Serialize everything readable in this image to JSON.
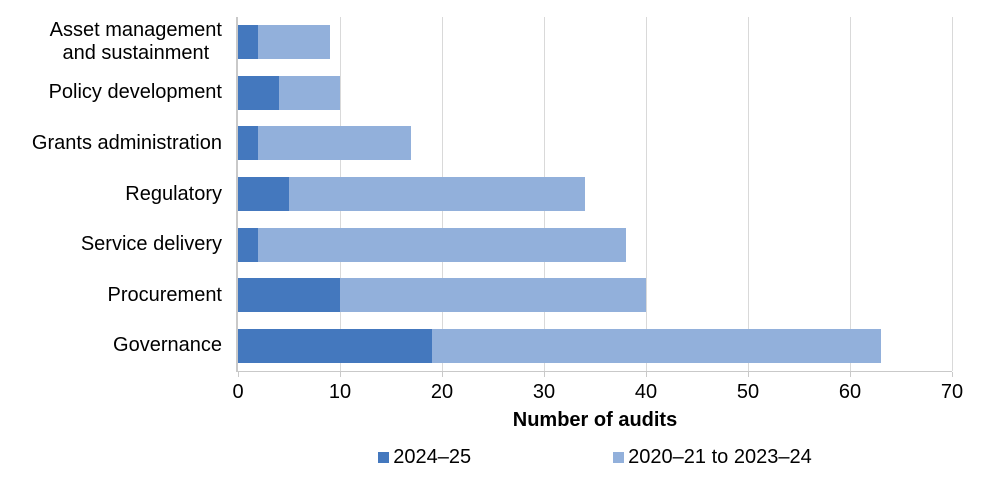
{
  "chart_data": {
    "type": "bar",
    "orientation": "horizontal",
    "stacked": true,
    "title": "",
    "xlabel": "Number of audits",
    "ylabel": "",
    "xlim": [
      0,
      70
    ],
    "xticks": [
      0,
      10,
      20,
      30,
      40,
      50,
      60,
      70
    ],
    "grid": true,
    "legend_position": "bottom",
    "categories": [
      "Asset management\nand sustainment",
      "Policy development",
      "Grants administration",
      "Regulatory",
      "Service delivery",
      "Procurement",
      "Governance"
    ],
    "series": [
      {
        "name": "2024–25",
        "color": "#4478be",
        "values": [
          2,
          4,
          2,
          5,
          2,
          10,
          19
        ]
      },
      {
        "name": "2020–21 to 2023–24",
        "color": "#92b0db",
        "values": [
          7,
          6,
          15,
          29,
          36,
          30,
          44
        ]
      }
    ],
    "totals": [
      9,
      10,
      17,
      34,
      38,
      40,
      63
    ]
  },
  "colors": {
    "gridline": "#d9d9d9",
    "axis_line": "#c9c9c9",
    "text": "#000000",
    "background": "#ffffff"
  }
}
